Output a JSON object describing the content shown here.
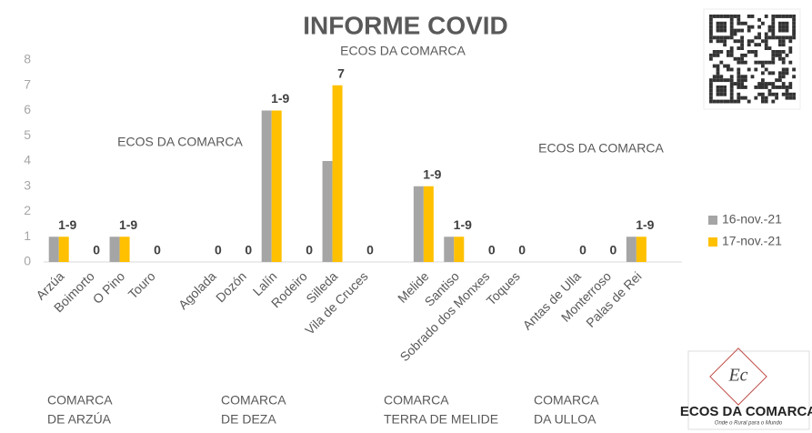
{
  "chart_data": {
    "type": "bar",
    "title": "INFORME COVID",
    "subtitle": "ECOS DA COMARCA",
    "watermarks": [
      "ECOS DA COMARCA",
      "ECOS DA COMARCA"
    ],
    "categories": [
      "Arzúa",
      "Boimorto",
      "O Pino",
      "Touro",
      null,
      "Agolada",
      "Dozón",
      "Lalín",
      "Rodeiro",
      "Silleda",
      "Vila de Cruces",
      null,
      "Melide",
      "Santiso",
      "Sobrado dos Monxes",
      "Toques",
      null,
      "Antas de Ulla",
      "Monterroso",
      "Palas de Rei",
      null
    ],
    "series": [
      {
        "name": "16-nov.-21",
        "color": "#a5a5a5",
        "values": [
          1,
          0,
          1,
          0,
          null,
          0,
          0,
          6,
          0,
          4,
          0,
          null,
          3,
          1,
          0,
          0,
          null,
          0,
          0,
          1,
          null
        ]
      },
      {
        "name": "17-nov.-21",
        "color": "#ffc000",
        "values": [
          1,
          0,
          1,
          0,
          null,
          0,
          0,
          6,
          0,
          7,
          0,
          null,
          3,
          1,
          0,
          0,
          null,
          0,
          0,
          1,
          null
        ],
        "value_labels": [
          "1-9",
          "0",
          "1-9",
          "0",
          null,
          "0",
          "0",
          "1-9",
          "0",
          "7",
          "0",
          null,
          "1-9",
          "1-9",
          "0",
          "0",
          null,
          "0",
          "0",
          "1-9",
          null
        ]
      }
    ],
    "ylim": [
      0,
      8
    ],
    "yticks": [
      0,
      1,
      2,
      3,
      4,
      5,
      6,
      7,
      8
    ],
    "grid": false,
    "legend": "right",
    "groups": [
      [
        "COMARCA",
        "DE ARZÚA"
      ],
      [
        "COMARCA",
        "DE DEZA"
      ],
      [
        "COMARCA",
        "TERRA DE MELIDE"
      ],
      [
        "COMARCA",
        "DA ULLOA"
      ]
    ],
    "logo": {
      "mark": "Ec",
      "name": "ECOS DA COMARCA",
      "tagline": "Onde o Rural para o Mundo"
    }
  }
}
